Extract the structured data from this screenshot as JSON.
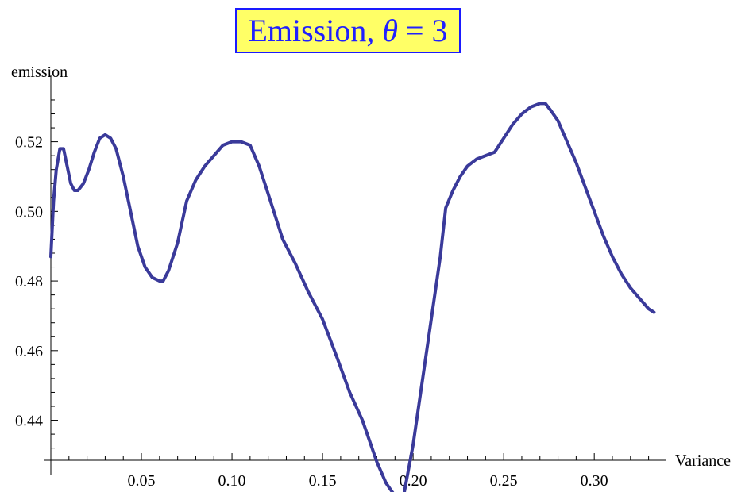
{
  "chart_data": {
    "type": "line",
    "title": "Emission, θ = 3",
    "title_parts": {
      "prefix": "Emission,",
      "symbol": "θ",
      "suffix": "= 3"
    },
    "xlabel": "Variance",
    "ylabel": "emission",
    "xlim": [
      0,
      0.335
    ],
    "ylim": [
      0.4285,
      0.5345
    ],
    "x_ticks": [
      0.05,
      0.1,
      0.15,
      0.2,
      0.25,
      0.3
    ],
    "x_tick_labels": [
      "0.05",
      "0.10",
      "0.15",
      "0.20",
      "0.25",
      "0.30"
    ],
    "y_ticks": [
      0.44,
      0.46,
      0.48,
      0.5,
      0.52
    ],
    "y_tick_labels": [
      "0.44",
      "0.46",
      "0.48",
      "0.50",
      "0.52"
    ],
    "grid": false,
    "line_color": "#3a3a9a",
    "title_bg_color": "#ffff66",
    "title_text_color": "#2020ff",
    "series": [
      {
        "x": [
          0.0,
          0.0015,
          0.003,
          0.005,
          0.007,
          0.009,
          0.011,
          0.013,
          0.015,
          0.018,
          0.021,
          0.024,
          0.027,
          0.03,
          0.033,
          0.036,
          0.04,
          0.044,
          0.048,
          0.052,
          0.056,
          0.06,
          0.062,
          0.065,
          0.07,
          0.075,
          0.08,
          0.085,
          0.09,
          0.095,
          0.1,
          0.105,
          0.11,
          0.115,
          0.12,
          0.128,
          0.135,
          0.142,
          0.15,
          0.158,
          0.165,
          0.172,
          0.18,
          0.185,
          0.189,
          0.192,
          0.195,
          0.2,
          0.205,
          0.21,
          0.215,
          0.218,
          0.222,
          0.226,
          0.23,
          0.235,
          0.24,
          0.245,
          0.25,
          0.255,
          0.26,
          0.265,
          0.27,
          0.273,
          0.276,
          0.28,
          0.285,
          0.29,
          0.295,
          0.3,
          0.305,
          0.31,
          0.315,
          0.32,
          0.325,
          0.33,
          0.333
        ],
        "y": [
          0.487,
          0.503,
          0.512,
          0.518,
          0.518,
          0.513,
          0.508,
          0.506,
          0.506,
          0.508,
          0.512,
          0.517,
          0.521,
          0.522,
          0.521,
          0.518,
          0.51,
          0.5,
          0.49,
          0.484,
          0.481,
          0.48,
          0.48,
          0.483,
          0.491,
          0.503,
          0.509,
          0.513,
          0.516,
          0.519,
          0.52,
          0.52,
          0.519,
          0.513,
          0.505,
          0.492,
          0.485,
          0.477,
          0.469,
          0.458,
          0.448,
          0.44,
          0.428,
          0.422,
          0.419,
          0.418,
          0.419,
          0.433,
          0.451,
          0.469,
          0.487,
          0.501,
          0.506,
          0.51,
          0.513,
          0.515,
          0.516,
          0.517,
          0.521,
          0.525,
          0.528,
          0.53,
          0.531,
          0.531,
          0.529,
          0.526,
          0.52,
          0.514,
          0.507,
          0.5,
          0.493,
          0.487,
          0.482,
          0.478,
          0.475,
          0.472,
          0.471
        ]
      }
    ]
  }
}
